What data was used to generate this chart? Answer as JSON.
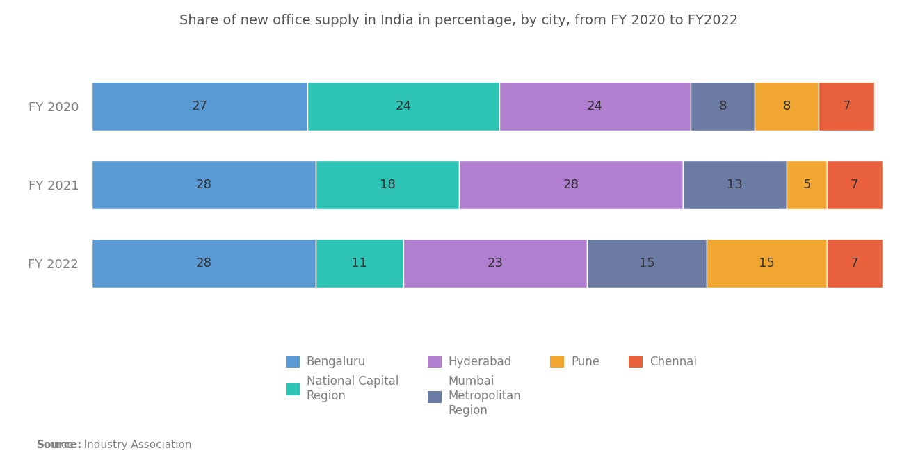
{
  "title": "Share of new office supply in India in percentage, by city, from FY 2020 to FY2022",
  "years": [
    "FY 2020",
    "FY 2021",
    "FY 2022"
  ],
  "categories": [
    "Bengaluru",
    "National Capital\nRegion",
    "Hyderabad",
    "Mumbai\nMetropolitan\nRegion",
    "Pune",
    "Chennai"
  ],
  "values": [
    [
      27,
      24,
      24,
      8,
      8,
      7
    ],
    [
      28,
      18,
      28,
      13,
      5,
      7
    ],
    [
      28,
      11,
      23,
      15,
      15,
      7
    ]
  ],
  "colors": [
    "#5B9BD5",
    "#2EC4B6",
    "#B07FD0",
    "#6B7BA4",
    "#F0A630",
    "#E8603C"
  ],
  "source_text": "  Industry Association",
  "source_bold": "Source:",
  "background_color": "#FFFFFF",
  "text_color": "#808080",
  "bar_height": 0.62,
  "title_fontsize": 14,
  "label_fontsize": 13,
  "legend_fontsize": 12,
  "source_fontsize": 11,
  "ytick_fontsize": 13
}
